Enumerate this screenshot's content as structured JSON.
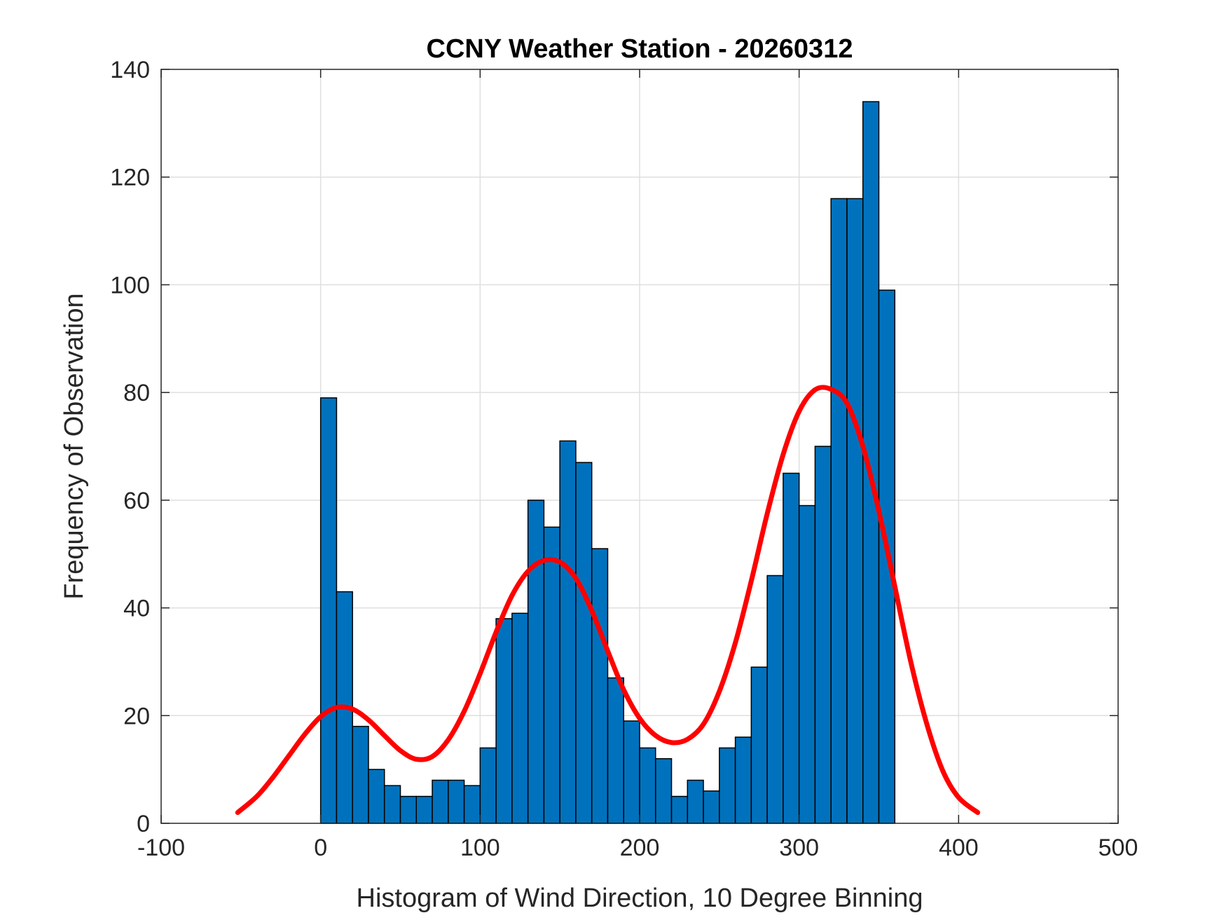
{
  "chart_data": {
    "type": "bar",
    "title": "CCNY Weather Station - 20260312",
    "xlabel": "Histogram of Wind Direction, 10 Degree Binning",
    "ylabel": "Frequency of Observation",
    "xlim": [
      -100,
      500
    ],
    "ylim": [
      0,
      140
    ],
    "xticks": [
      -100,
      0,
      100,
      200,
      300,
      400,
      500
    ],
    "yticks": [
      0,
      20,
      40,
      60,
      80,
      100,
      120,
      140
    ],
    "xtick_labels": [
      "-100",
      "0",
      "100",
      "200",
      "300",
      "400",
      "500"
    ],
    "ytick_labels": [
      "0",
      "20",
      "40",
      "60",
      "80",
      "100",
      "120",
      "140"
    ],
    "grid": true,
    "bin_width": 10,
    "bin_starts": [
      0,
      10,
      20,
      30,
      40,
      50,
      60,
      70,
      80,
      90,
      100,
      110,
      120,
      130,
      140,
      150,
      160,
      170,
      180,
      190,
      200,
      210,
      220,
      230,
      240,
      250,
      260,
      270,
      280,
      290,
      300,
      310,
      320,
      330,
      340,
      350
    ],
    "values": [
      79,
      43,
      18,
      10,
      7,
      5,
      5,
      8,
      8,
      7,
      14,
      38,
      39,
      60,
      55,
      71,
      67,
      51,
      27,
      19,
      14,
      12,
      5,
      8,
      6,
      14,
      16,
      29,
      46,
      65,
      59,
      70,
      116,
      116,
      134,
      99
    ],
    "bar_color": "#0072BD",
    "fit_color": "#FF0000",
    "fit_curve": {
      "x": [
        -52,
        -40,
        -30,
        -20,
        -10,
        0,
        10,
        20,
        30,
        40,
        50,
        60,
        70,
        80,
        90,
        100,
        110,
        120,
        130,
        140,
        150,
        160,
        170,
        180,
        190,
        200,
        210,
        220,
        230,
        240,
        250,
        260,
        270,
        280,
        290,
        300,
        310,
        320,
        330,
        340,
        350,
        360,
        370,
        380,
        390,
        400,
        412
      ],
      "y": [
        2,
        5,
        8.5,
        12.5,
        16.5,
        19.8,
        21.5,
        21.2,
        19.2,
        16.3,
        13.5,
        11.9,
        12.4,
        15.5,
        20.8,
        27.8,
        35.5,
        42.3,
        46.8,
        48.8,
        48.5,
        45.5,
        39.5,
        32,
        24.8,
        19.5,
        16.3,
        15,
        15.6,
        18.4,
        24.5,
        33.5,
        45,
        57.5,
        68.5,
        76.5,
        80.5,
        80.6,
        78,
        70,
        58,
        44,
        30,
        18.5,
        9.8,
        4.8,
        2
      ]
    }
  }
}
